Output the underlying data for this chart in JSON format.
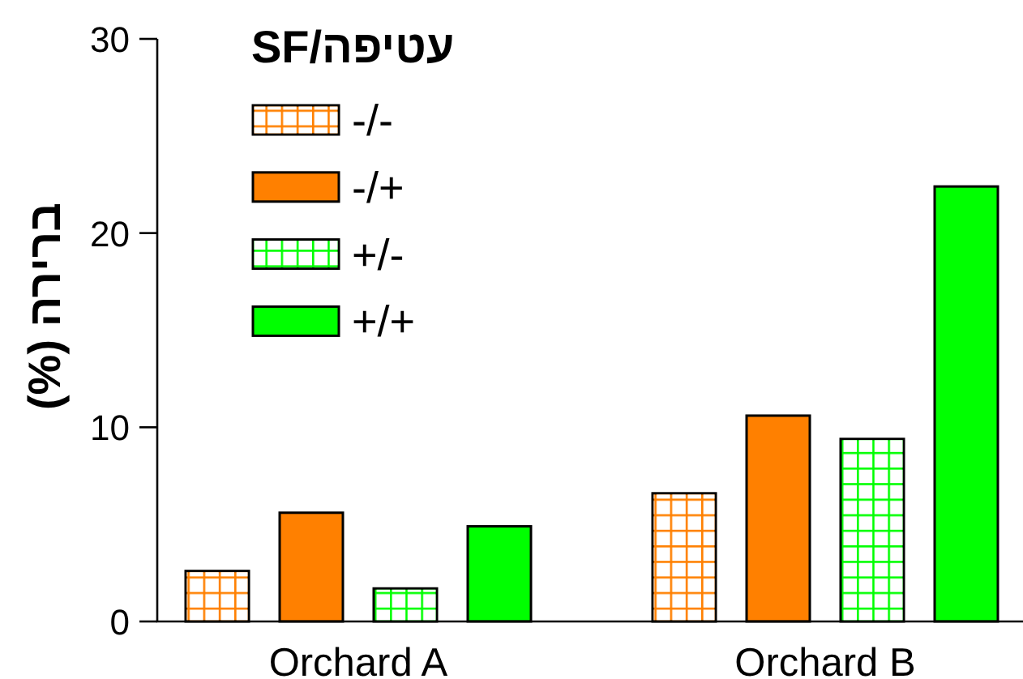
{
  "chart_data": {
    "type": "bar",
    "categories": [
      "Orchard A",
      "Orchard B"
    ],
    "ylabel": "ברירה (%)",
    "legend_title": "עטיפה/SF",
    "series": [
      {
        "name": "-/-",
        "color": "#ff8000",
        "values": [
          2.6,
          6.6
        ]
      },
      {
        "name": "-/+",
        "color": "#ff8000",
        "values": [
          5.6,
          10.6
        ]
      },
      {
        "name": "+/-",
        "color": "#00ff00",
        "values": [
          1.7,
          9.4
        ]
      },
      {
        "name": "+/+",
        "color": "#00ff00",
        "values": [
          4.9,
          22.4
        ]
      }
    ],
    "ylim": [
      0,
      30
    ],
    "yticks": [
      0,
      10,
      20,
      30
    ],
    "legend": "top left"
  }
}
